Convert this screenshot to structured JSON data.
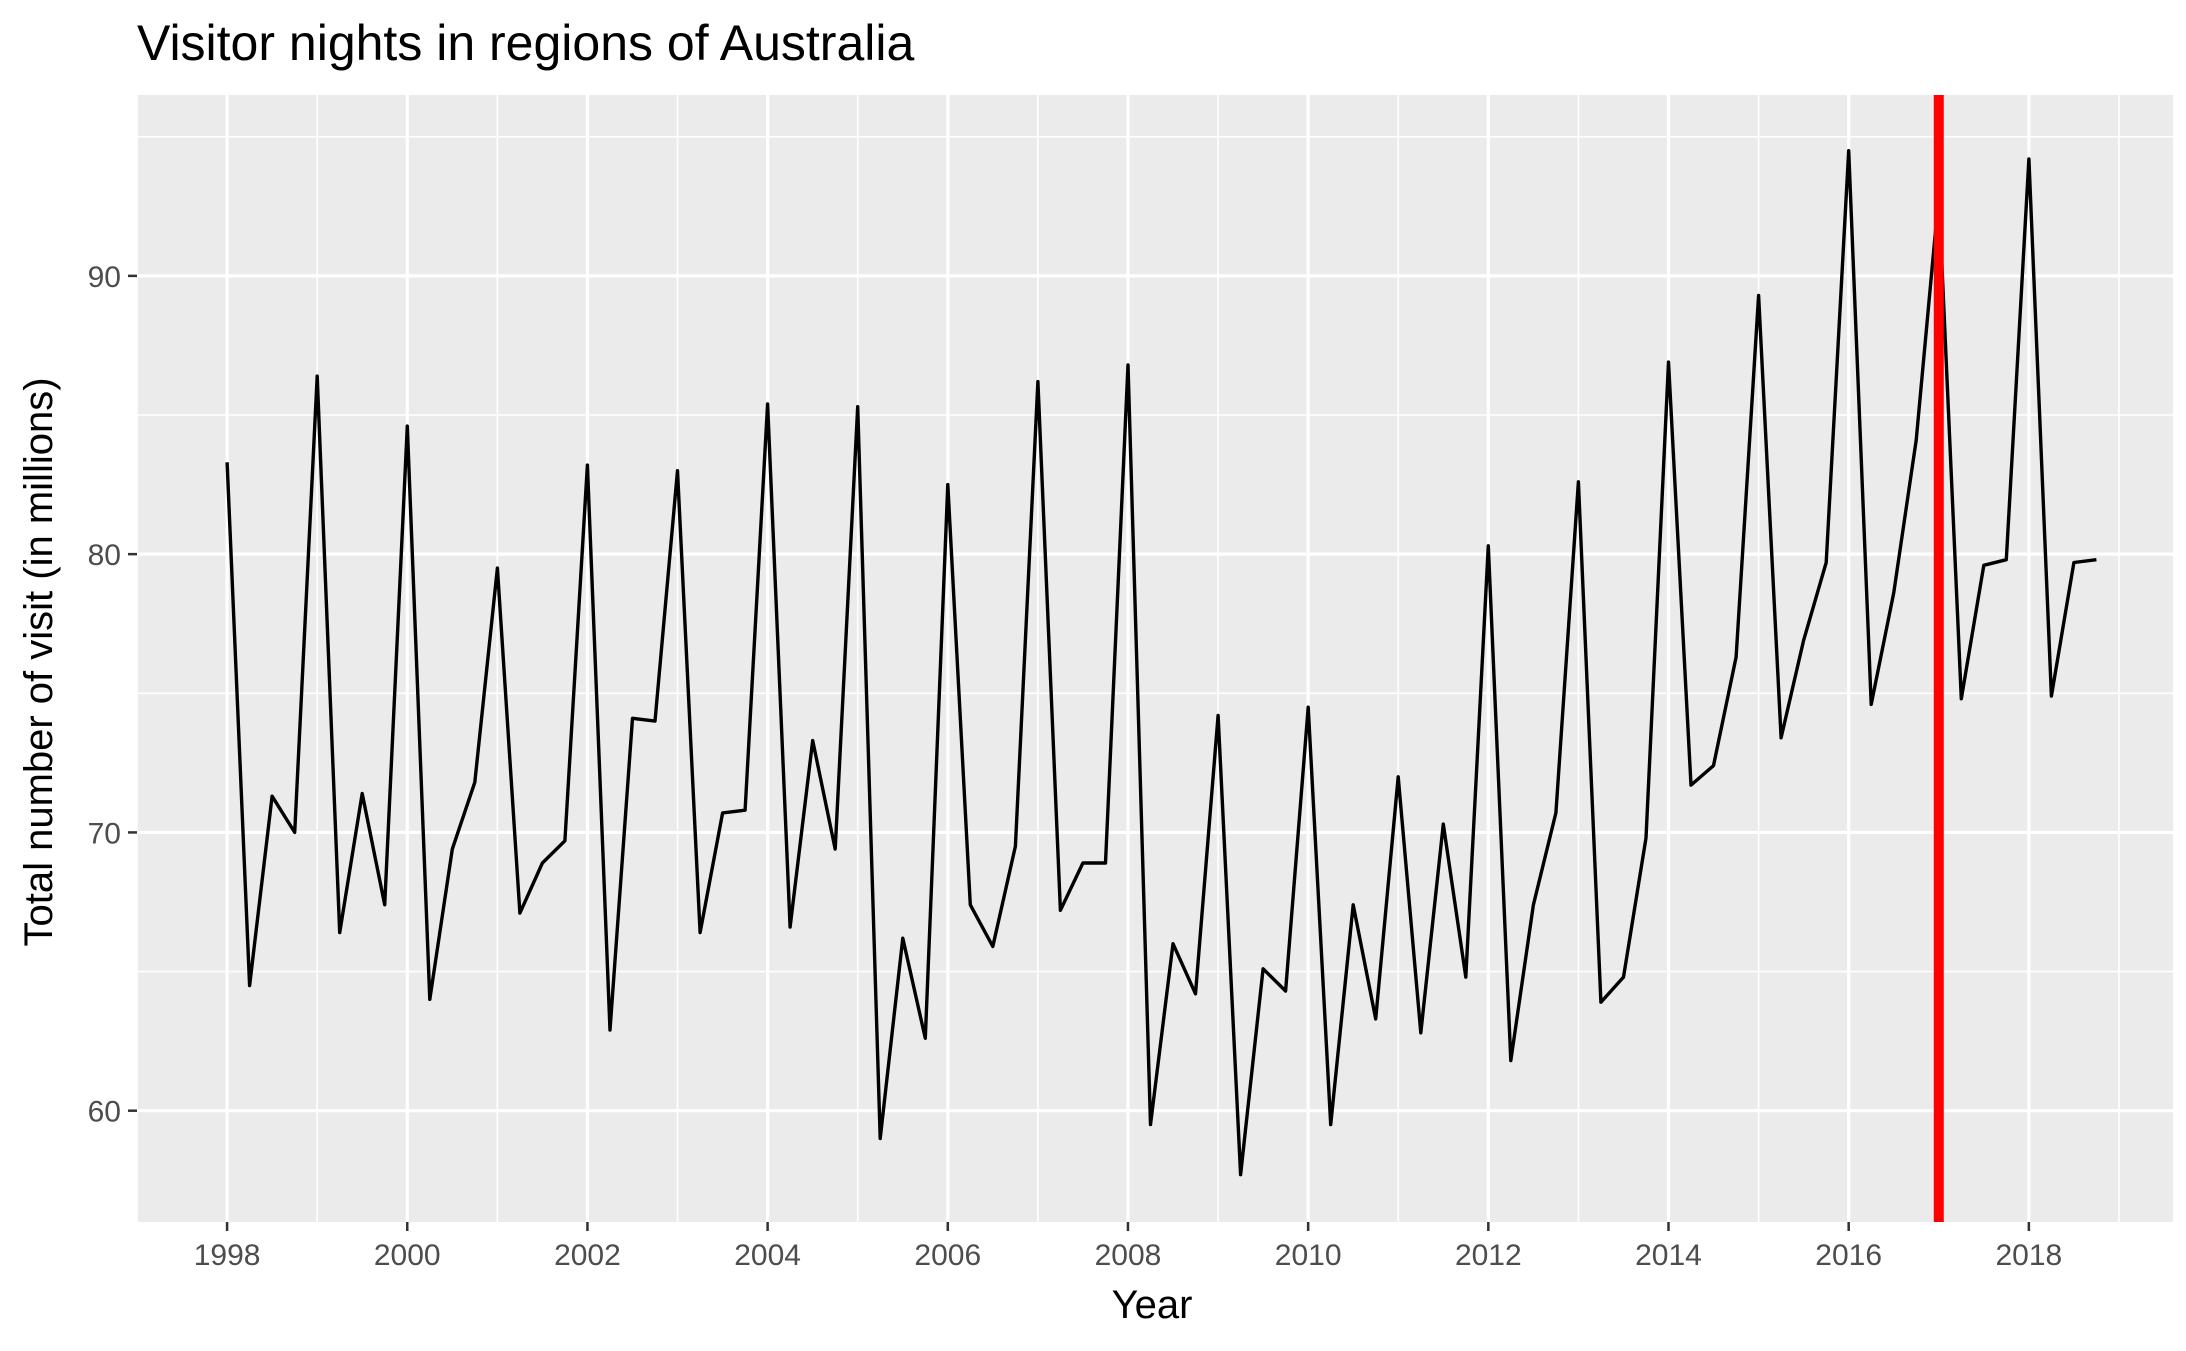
{
  "chart_data": {
    "type": "line",
    "title": "Visitor nights in regions of Australia",
    "xlabel": "Year",
    "ylabel": "Total number of visit (in millions)",
    "xlim": [
      1997.0,
      2019.6
    ],
    "ylim": [
      56.0,
      96.5
    ],
    "x_ticks": [
      1998,
      2000,
      2002,
      2004,
      2006,
      2008,
      2010,
      2012,
      2014,
      2016,
      2018
    ],
    "x_tick_labels": [
      "1998",
      "2000",
      "2002",
      "2004",
      "2006",
      "2008",
      "2010",
      "2012",
      "2014",
      "2016",
      "2018"
    ],
    "y_ticks": [
      60,
      70,
      80,
      90
    ],
    "y_tick_labels": [
      "60",
      "70",
      "80",
      "90"
    ],
    "y_minor": [
      65,
      75,
      85,
      95
    ],
    "grid": true,
    "colors": {
      "panel": "#ebebeb",
      "grid": "#ffffff",
      "line": "#000000",
      "marker": "#ff0000"
    },
    "vline": {
      "x": 2017.0,
      "color": "#ff0000"
    },
    "series": [
      {
        "x_start": 1998.0,
        "x_step": 0.25,
        "values": [
          83.3,
          64.5,
          71.3,
          70.0,
          86.4,
          66.4,
          71.4,
          67.4,
          84.6,
          64.0,
          69.4,
          71.8,
          79.5,
          67.1,
          68.9,
          69.7,
          83.2,
          62.9,
          74.1,
          74.0,
          83.0,
          66.4,
          70.7,
          70.8,
          85.4,
          66.6,
          73.3,
          69.4,
          85.3,
          59.0,
          66.2,
          62.6,
          82.5,
          67.4,
          65.9,
          69.5,
          86.2,
          67.2,
          68.9,
          68.9,
          86.8,
          59.5,
          66.0,
          64.2,
          74.2,
          57.7,
          65.1,
          64.3,
          74.5,
          59.5,
          67.4,
          63.3,
          72.0,
          62.8,
          70.3,
          64.8,
          80.3,
          61.8,
          67.4,
          70.7,
          82.6,
          63.9,
          64.8,
          69.8,
          86.9,
          71.7,
          72.4,
          76.3,
          89.3,
          73.4,
          76.9,
          79.7,
          94.5,
          74.6,
          78.6,
          84.1,
          92.9,
          74.8,
          79.6,
          79.8,
          94.2,
          74.9,
          79.7,
          79.8
        ]
      }
    ]
  }
}
